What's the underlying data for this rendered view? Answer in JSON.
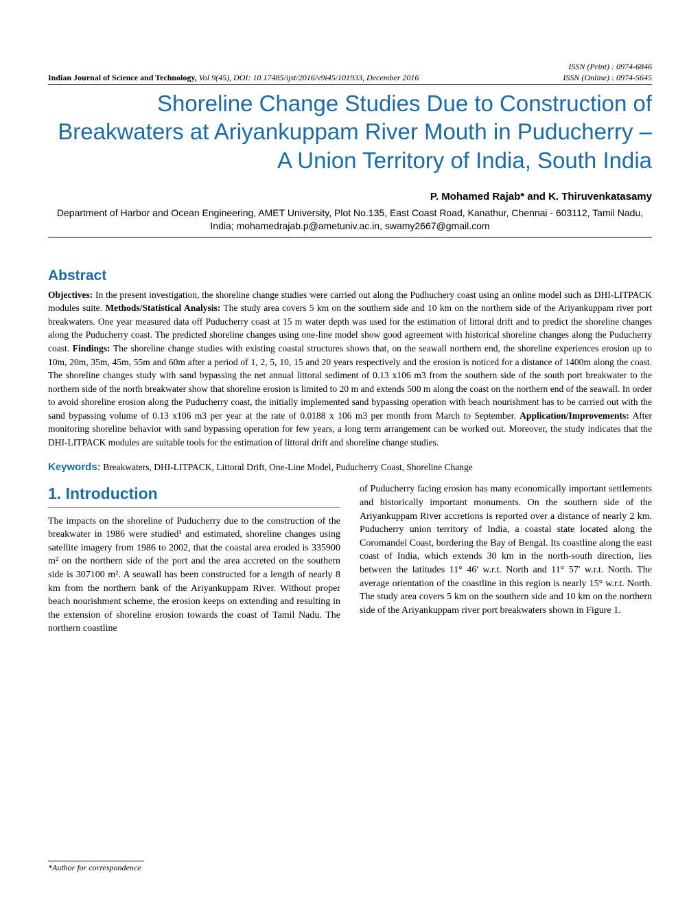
{
  "header": {
    "journal": "Indian Journal of Science and Technology,",
    "volume": "Vol 9(45), DOI: 10.17485/ijst/2016/v9i45/101933, December 2016",
    "issn_print": "ISSN (Print) : 0974-6846",
    "issn_online": "ISSN (Online) : 0974-5645"
  },
  "title": "Shoreline Change Studies Due to Construction of Breakwaters at Ariyankuppam River Mouth in Puducherry – A Union Territory of India, South India",
  "authors": "P. Mohamed Rajab* and K. Thiruvenkatasamy",
  "affiliation": "Department of Harbor and Ocean Engineering, AMET University, Plot No.135, East Coast Road, Kanathur, Chennai - 603112, Tamil Nadu, India; mohamedrajab.p@ametuniv.ac.in, swamy2667@gmail.com",
  "abstract": {
    "heading": "Abstract",
    "objectives_label": "Objectives:",
    "objectives": " In the present investigation, the shoreline change studies were carried out along the Pudhuchery coast using an online model such as DHI-LITPACK modules suite. ",
    "methods_label": "Methods/Statistical Analysis:",
    "methods": " The study area covers 5 km on the southern side and 10 km on the northern side of the Ariyankuppam river port breakwaters. One year measured data off Puducherry coast at 15 m water depth was used for the estimation of littoral drift and to predict the shoreline changes along the Puducherry coast. The predicted shoreline changes using one-line model show good agreement with historical shoreline changes along the Puducherry coast. ",
    "findings_label": "Findings:",
    "findings": " The shoreline change studies with existing coastal structures shows that, on the seawall northern end, the shoreline experiences erosion up to 10m, 20m, 35m, 45m, 55m and 60m after a period of 1, 2, 5, 10, 15 and 20 years respectively and the erosion is noticed for a distance of 1400m along the coast. The shoreline changes study with sand bypassing the net annual littoral sediment of 0.13 x106 m3 from the southern side of the south port breakwater to the northern side of the north breakwater show that shoreline erosion is limited to 20 m and extends 500 m along the coast on the northern end of the seawall. In order to avoid shoreline erosion along the Puducherry coast, the initially implemented sand bypassing operation with beach nourishment has to be carried out with the sand bypassing volume of 0.13 x106 m3 per year at the rate of 0.0188 x 106 m3 per month from March to September. ",
    "application_label": "Application/Improvements:",
    "application": " After monitoring shoreline behavior with sand bypassing operation for few years, a long term arrangement can be worked out. Moreover, the study indicates that the DHI-LITPACK modules are suitable tools for the estimation of littoral drift and shoreline change studies."
  },
  "keywords": {
    "label": "Keywords:",
    "text": " Breakwaters, DHI-LITPACK, Littoral Drift, One-Line Model, Puducherry Coast, Shoreline Change"
  },
  "section1": {
    "heading": "1.  Introduction",
    "col1": "The impacts on the shoreline of Puducherry due to the construction of the breakwater in 1986 were studied¹ and estimated, shoreline changes using satellite imagery from 1986 to 2002, that the coastal area eroded is 335900 m² on the northern side of the port and the area accreted on the southern side is 307100 m². A seawall has been constructed for a length of nearly 8 km from the northern bank of the Ariyankuppam River. Without proper beach nourishment scheme, the erosion keeps on extending and resulting in the extension of shoreline erosion towards the coast of Tamil Nadu. The northern coastline",
    "col2": "of Puducherry facing erosion has many economically important settlements and historically important monuments. On the southern side of the Ariyankuppam River accretions is reported over a distance of nearly 2 km. Puducherry union territory of India, a coastal state located along the Coromandel Coast, bordering the Bay of Bengal. Its coastline along the east coast of India, which extends 30 km in the north-south direction, lies between the latitudes 11° 46' w.r.t. North and 11° 57' w.r.t. North. The average orientation of the coastline in this region is nearly 15° w.r.t. North. The study area covers 5 km on the southern side and 10 km on the northern side of the Ariyankuppam river port breakwaters shown in Figure 1."
  },
  "footer": "*Author for correspondence",
  "colors": {
    "accent": "#1a6ba8",
    "text": "#000000",
    "background": "#ffffff"
  }
}
